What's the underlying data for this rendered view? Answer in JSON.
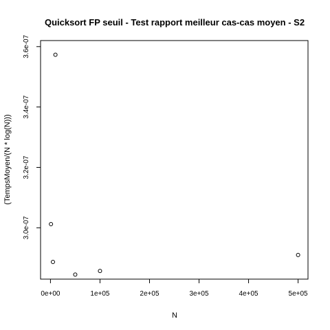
{
  "chart_data": {
    "type": "scatter",
    "title": "Quicksort FP seuil - Test rapport meilleur cas-cas moyen - S2",
    "xlabel": "N",
    "ylabel": "(TempsMoyen/(N * log(N)))",
    "xlim": [
      -20000,
      520000
    ],
    "ylim": [
      2.83e-07,
      3.62e-07
    ],
    "x_ticks": [
      {
        "value": 0,
        "label": "0e+00"
      },
      {
        "value": 100000,
        "label": "1e+05"
      },
      {
        "value": 200000,
        "label": "2e+05"
      },
      {
        "value": 300000,
        "label": "3e+05"
      },
      {
        "value": 400000,
        "label": "4e+05"
      },
      {
        "value": 500000,
        "label": "5e+05"
      }
    ],
    "y_ticks": [
      {
        "value": 3e-07,
        "label": "3.0e-07"
      },
      {
        "value": 3.2e-07,
        "label": "3.2e-07"
      },
      {
        "value": 3.4e-07,
        "label": "3.4e-07"
      },
      {
        "value": 3.6e-07,
        "label": "3.6e-07"
      }
    ],
    "grid": false,
    "legend": "none",
    "points": [
      {
        "x": 1000,
        "y": 3.012e-07
      },
      {
        "x": 5000,
        "y": 2.887e-07
      },
      {
        "x": 10000,
        "y": 3.573e-07
      },
      {
        "x": 50000,
        "y": 2.845e-07
      },
      {
        "x": 100000,
        "y": 2.857e-07
      },
      {
        "x": 500000,
        "y": 2.91e-07
      }
    ]
  }
}
